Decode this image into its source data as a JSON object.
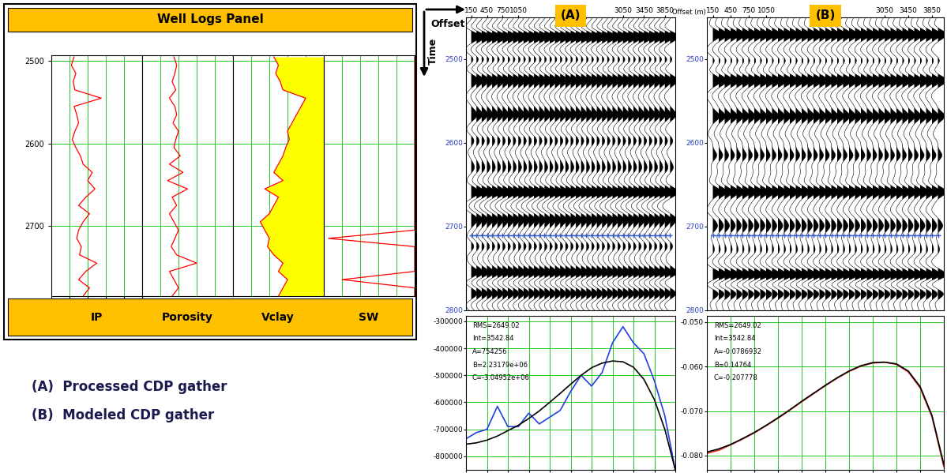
{
  "well_logs": {
    "title": "Well Logs Panel",
    "depth": [
      2495,
      2505,
      2515,
      2525,
      2535,
      2545,
      2555,
      2565,
      2575,
      2585,
      2595,
      2605,
      2615,
      2625,
      2635,
      2645,
      2655,
      2665,
      2675,
      2685,
      2695,
      2705,
      2715,
      2725,
      2735,
      2745,
      2755,
      2765,
      2775,
      2785
    ],
    "ylim": [
      2785,
      2493
    ],
    "yticks": [
      2500,
      2600,
      2700
    ],
    "xlim": [
      0,
      1
    ],
    "xticks": [
      0,
      0.2,
      0.4,
      0.6,
      0.8,
      1
    ],
    "tick_labels": "y",
    "grid": true,
    "tracks": [
      {
        "name": "IP",
        "color": "#ff0000",
        "values": [
          0.25,
          0.22,
          0.27,
          0.24,
          0.26,
          0.55,
          0.25,
          0.28,
          0.3,
          0.26,
          0.23,
          0.27,
          0.32,
          0.35,
          0.45,
          0.4,
          0.48,
          0.38,
          0.3,
          0.42,
          0.35,
          0.3,
          0.28,
          0.33,
          0.31,
          0.5,
          0.38,
          0.3,
          0.42,
          0.35
        ]
      },
      {
        "name": "Porosity",
        "color": "#ff0000",
        "values": [
          0.35,
          0.38,
          0.36,
          0.33,
          0.37,
          0.3,
          0.36,
          0.38,
          0.34,
          0.4,
          0.37,
          0.35,
          0.42,
          0.3,
          0.45,
          0.28,
          0.5,
          0.33,
          0.38,
          0.3,
          0.35,
          0.4,
          0.36,
          0.32,
          0.38,
          0.6,
          0.3,
          0.35,
          0.4,
          0.33
        ]
      },
      {
        "name": "Vclay",
        "color": "#ff0000",
        "fill_color": "#ffff00",
        "values": [
          0.45,
          0.5,
          0.47,
          0.52,
          0.55,
          0.8,
          0.75,
          0.7,
          0.65,
          0.6,
          0.62,
          0.58,
          0.55,
          0.5,
          0.45,
          0.55,
          0.35,
          0.5,
          0.45,
          0.4,
          0.3,
          0.35,
          0.4,
          0.38,
          0.45,
          0.55,
          0.5,
          0.6,
          0.55,
          0.5
        ]
      },
      {
        "name": "SW",
        "color": "#ff0000",
        "values": [
          1,
          1,
          1,
          1,
          1,
          1,
          1,
          1,
          1,
          1,
          1,
          1,
          1,
          1,
          1,
          1,
          1,
          1,
          1,
          1,
          1,
          1,
          0.05,
          1,
          1,
          1,
          1,
          0.2,
          1,
          1
        ]
      }
    ]
  },
  "axis_titles": {
    "offset": "Offset",
    "time": "Time"
  },
  "captions": [
    "(A)  Processed CDP gather",
    "(B)  Modeled CDP gather"
  ],
  "gathers": [
    {
      "label": "(A)",
      "trace_offsets": [
        150,
        250,
        350,
        450,
        550,
        650,
        750,
        850,
        950,
        1050,
        1150,
        1250,
        1350,
        1450,
        1550,
        1650,
        1750,
        1850,
        1950,
        2050,
        2150,
        2250,
        2350,
        2450,
        2550,
        2650,
        2750,
        2850,
        2950,
        3050,
        3150,
        3250,
        3350,
        3450,
        3550,
        3650,
        3750,
        3850,
        3950
      ],
      "xlim": [
        50,
        4050
      ],
      "xticks": [
        150,
        450,
        750,
        1050,
        3050,
        3450,
        3850
      ],
      "ylim": [
        2800,
        2450
      ],
      "yticks": [
        2500,
        2600,
        2700,
        2800
      ],
      "horizon_time": 2710,
      "horizon_color": "#3a5fcd",
      "events": [
        {
          "time": 2462,
          "amplitude": -0.4
        },
        {
          "time": 2472,
          "amplitude": 0.9
        },
        {
          "time": 2490,
          "amplitude": -0.6
        },
        {
          "time": 2510,
          "amplitude": -0.4
        },
        {
          "time": 2525,
          "amplitude": 0.8
        },
        {
          "time": 2545,
          "amplitude": -0.6
        },
        {
          "time": 2566,
          "amplitude": 0.7
        },
        {
          "time": 2585,
          "amplitude": -0.5
        },
        {
          "time": 2610,
          "amplitude": -0.4
        },
        {
          "time": 2630,
          "amplitude": 0.4
        },
        {
          "time": 2658,
          "amplitude": 1.0
        },
        {
          "time": 2676,
          "amplitude": -0.6
        },
        {
          "time": 2692,
          "amplitude": 0.6
        },
        {
          "time": 2712,
          "amplitude": -0.5
        },
        {
          "time": 2735,
          "amplitude": -0.4
        },
        {
          "time": 2755,
          "amplitude": 1.0
        },
        {
          "time": 2779,
          "amplitude": 0.7
        },
        {
          "time": 2795,
          "amplitude": -0.5
        }
      ]
    },
    {
      "label": "(B)",
      "offset_label": "Offset (m)",
      "trace_offsets": [
        150,
        250,
        350,
        450,
        550,
        650,
        750,
        850,
        950,
        1050,
        1150,
        1250,
        1350,
        1450,
        1550,
        1650,
        1750,
        1850,
        1950,
        2050,
        2150,
        2250,
        2350,
        2450,
        2550,
        2650,
        2750,
        2850,
        2950,
        3050,
        3150,
        3250,
        3350,
        3450,
        3550,
        3650,
        3750,
        3850,
        3950
      ],
      "xlim": [
        50,
        4050
      ],
      "xticks": [
        150,
        450,
        750,
        1050,
        3050,
        3450,
        3850
      ],
      "ylim": [
        2800,
        2450
      ],
      "yticks": [
        2500,
        2600,
        2700,
        2800
      ],
      "horizon_time": 2710,
      "horizon_color": "#3a5fcd",
      "events": [
        {
          "time": 2470,
          "amplitude": 1.0
        },
        {
          "time": 2490,
          "amplitude": -0.6
        },
        {
          "time": 2525,
          "amplitude": 1.0
        },
        {
          "time": 2545,
          "amplitude": -0.6
        },
        {
          "time": 2568,
          "amplitude": 0.8
        },
        {
          "time": 2590,
          "amplitude": -0.5
        },
        {
          "time": 2615,
          "amplitude": 0.5
        },
        {
          "time": 2658,
          "amplitude": 1.0
        },
        {
          "time": 2680,
          "amplitude": -0.6
        },
        {
          "time": 2700,
          "amplitude": 0.5
        },
        {
          "time": 2740,
          "amplitude": -0.5
        },
        {
          "time": 2758,
          "amplitude": 1.0
        },
        {
          "time": 2780,
          "amplitude": 0.8
        }
      ]
    }
  ],
  "chart_data": [
    {
      "type": "line",
      "x": [
        0,
        200,
        400,
        600,
        800,
        1000,
        1200,
        1400,
        1600,
        1800,
        2000,
        2200,
        2400,
        2600,
        2800,
        3000,
        3200,
        3400,
        3600,
        3800,
        4000
      ],
      "xlim": [
        0,
        4000
      ],
      "xticks": [
        0,
        400,
        800,
        1200,
        1600,
        2000,
        2400,
        2800,
        3200,
        3600,
        4000
      ],
      "ylim": [
        -850000,
        -280000
      ],
      "yticks": [
        -800000,
        -700000,
        -600000,
        -500000,
        -400000,
        -300000
      ],
      "grid": true,
      "tick_labels": "y",
      "annotations": [
        "RMS=2649.02",
        "Int=3542.84",
        "A=754256",
        "B=2.23179e+06",
        "C=-3.04952e+06"
      ],
      "series": [
        {
          "color": "#2040e0",
          "values": [
            -735000,
            -712000,
            -700000,
            -615000,
            -690000,
            -690000,
            -640000,
            -680000,
            -655000,
            -630000,
            -560000,
            -500000,
            -540000,
            -490000,
            -380000,
            -320000,
            -380000,
            -420000,
            -520000,
            -650000,
            -850000
          ]
        },
        {
          "color": "#000000",
          "values": [
            -755000,
            -750000,
            -740000,
            -725000,
            -705000,
            -685000,
            -660000,
            -632000,
            -600000,
            -567000,
            -533000,
            -500000,
            -472000,
            -455000,
            -447000,
            -450000,
            -470000,
            -515000,
            -590000,
            -700000,
            -850000
          ]
        }
      ]
    },
    {
      "type": "line",
      "x": [
        0,
        200,
        400,
        600,
        800,
        1000,
        1200,
        1400,
        1600,
        1800,
        2000,
        2200,
        2400,
        2600,
        2800,
        3000,
        3200,
        3400,
        3600,
        3800,
        4000
      ],
      "xlim": [
        0,
        4000
      ],
      "xticks": [
        0,
        400,
        800,
        1200,
        1600,
        2000,
        2400,
        2800,
        3200,
        3600,
        4000
      ],
      "ylim": [
        -0.0832,
        -0.0486
      ],
      "yticks": [
        {
          "value": -0.08,
          "label": "-0.080"
        },
        {
          "value": -0.07,
          "label": "-0.070"
        },
        {
          "value": -0.06,
          "label": "-0.060"
        },
        {
          "value": -0.05,
          "label": "-0.050"
        }
      ],
      "grid": true,
      "tick_labels": "y",
      "annotations": [
        "RMS=2649.02",
        "Int=3542.84",
        "A=-0.0786932",
        "B=0.14764",
        "C=-0.207778"
      ],
      "series": [
        {
          "color": "#e03020",
          "values": [
            -0.0795,
            -0.0788,
            -0.0776,
            -0.0763,
            -0.0749,
            -0.0733,
            -0.0716,
            -0.0698,
            -0.0679,
            -0.0661,
            -0.0643,
            -0.0626,
            -0.0611,
            -0.0599,
            -0.0592,
            -0.059,
            -0.0595,
            -0.0612,
            -0.0648,
            -0.0713,
            -0.0825
          ]
        },
        {
          "color": "#000000",
          "values": [
            -0.0792,
            -0.0785,
            -0.0775,
            -0.0762,
            -0.0748,
            -0.0732,
            -0.0715,
            -0.0697,
            -0.0678,
            -0.066,
            -0.0642,
            -0.0625,
            -0.061,
            -0.0598,
            -0.0591,
            -0.059,
            -0.0594,
            -0.061,
            -0.0645,
            -0.071,
            -0.082
          ]
        }
      ]
    }
  ]
}
